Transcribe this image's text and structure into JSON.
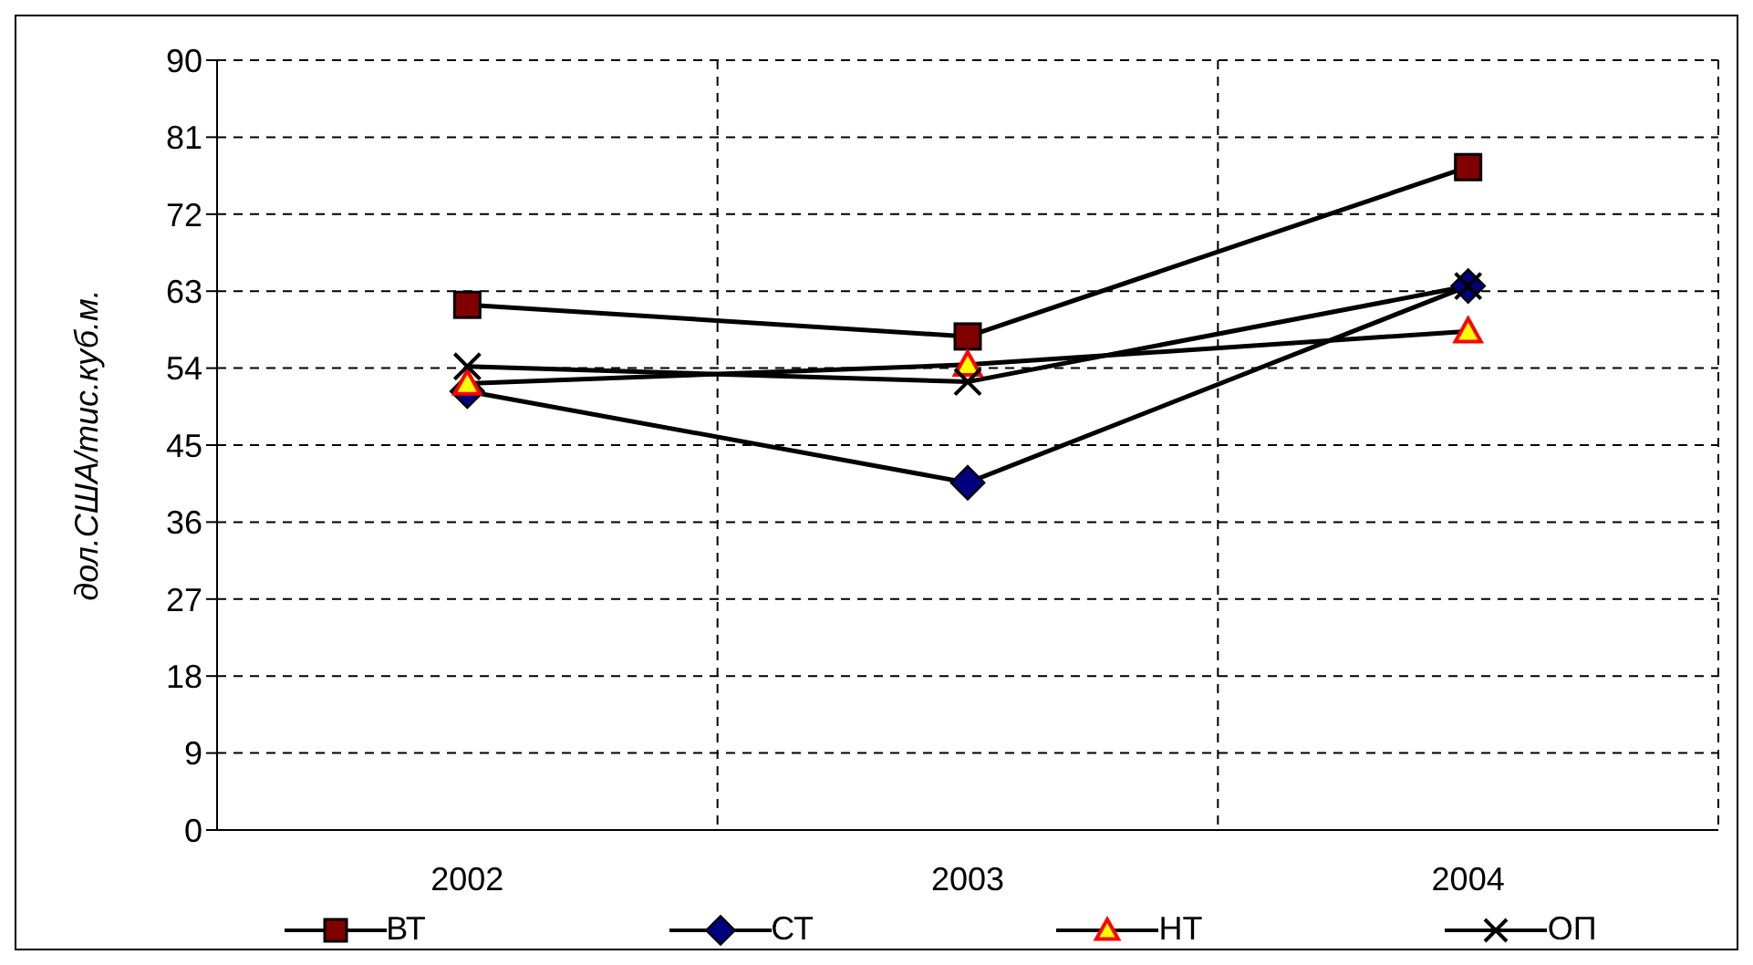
{
  "chart_data": {
    "type": "line",
    "ylabel": "дол.США/тис.куб.м.",
    "categories": [
      "2002",
      "2003",
      "2004"
    ],
    "ylim": [
      0,
      90
    ],
    "yticks": [
      0,
      9,
      18,
      27,
      36,
      45,
      54,
      63,
      72,
      81,
      90
    ],
    "grid": true,
    "legend": "bottom",
    "series": [
      {
        "name": "ВТ",
        "color": "#800000",
        "marker": "square",
        "values": [
          61.4,
          57.7,
          77.5
        ]
      },
      {
        "name": "СТ",
        "color": "#000080",
        "marker": "diamond",
        "values": [
          51.3,
          40.6,
          63.6
        ]
      },
      {
        "name": "НТ",
        "color": "#ffff00",
        "marker": "triangle",
        "values": [
          52.2,
          54.4,
          58.3
        ]
      },
      {
        "name": "ОП",
        "color": "#000000",
        "marker": "cross",
        "values": [
          54.2,
          52.4,
          63.6
        ]
      }
    ]
  }
}
